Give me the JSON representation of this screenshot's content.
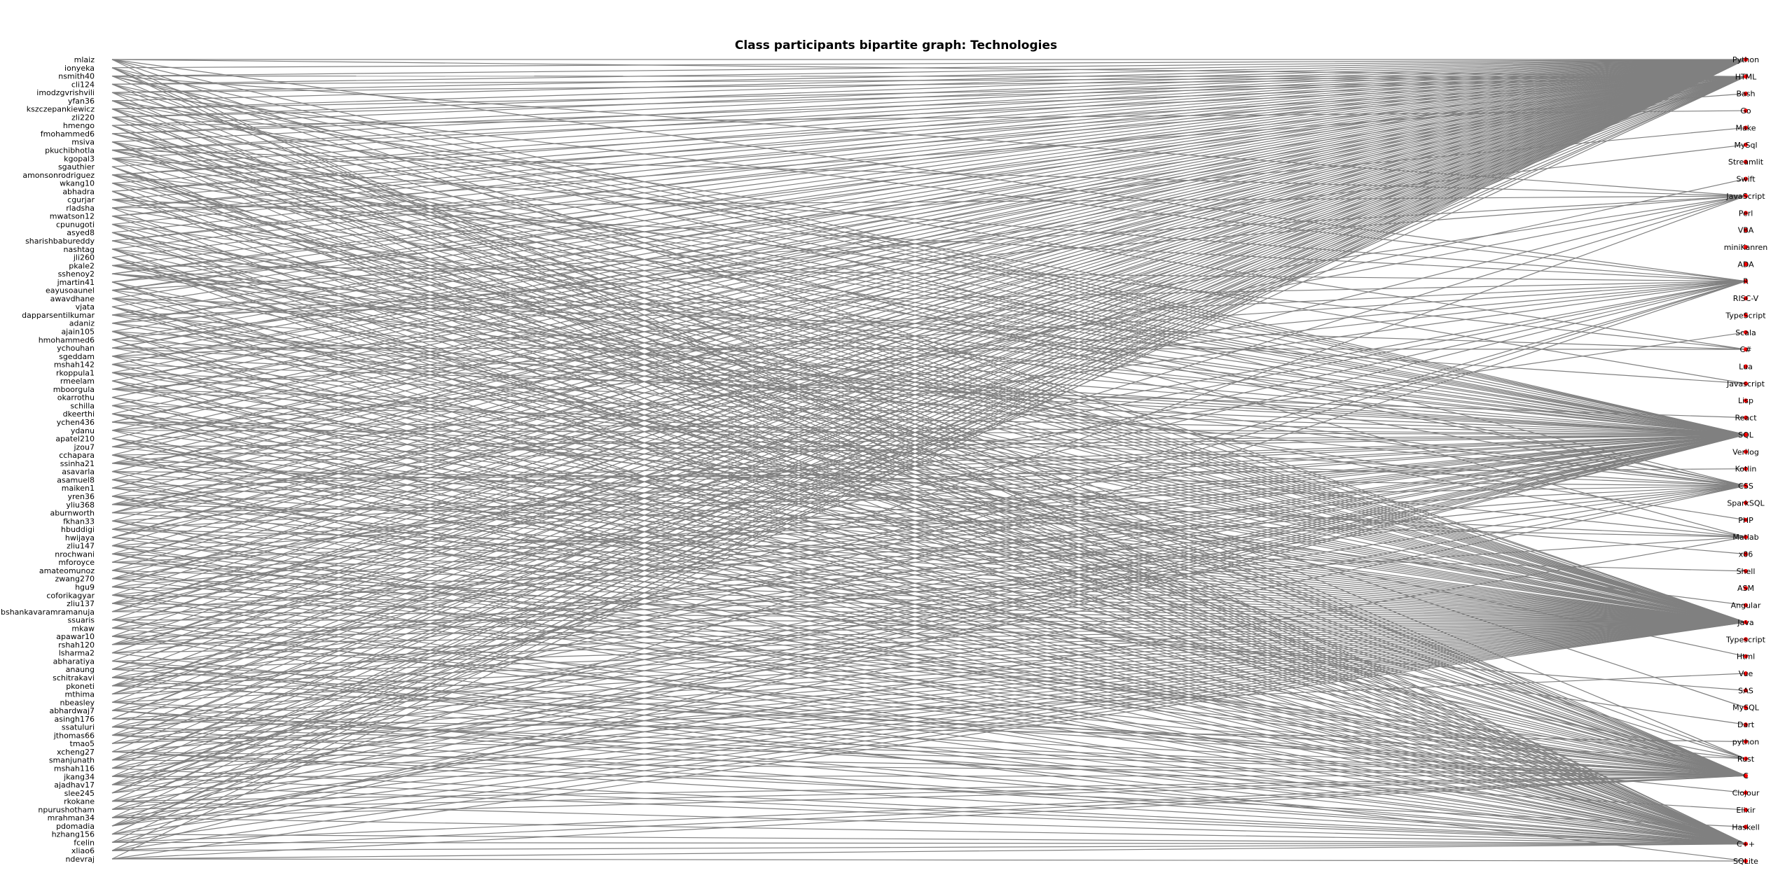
{
  "title": "Class participants bipartite graph: Technologies",
  "colors": {
    "edge": "#808080",
    "node": "#ff0000",
    "text": "#000000",
    "background": "#ffffff"
  },
  "participants": [
    "mlaiz",
    "ionyeka",
    "nsmith40",
    "cli124",
    "imodzgvrishvili",
    "yfan36",
    "kszczepankiewicz",
    "zli220",
    "hmengo",
    "fmohammed6",
    "msiva",
    "pkuchibhotla",
    "kgopal3",
    "sgauthier",
    "amonsonrodriguez",
    "wkang10",
    "abhadra",
    "cgurjar",
    "rladsha",
    "mwatson12",
    "cpunugoti",
    "asyed8",
    "sharishbabureddy",
    "nashtag",
    "jli260",
    "pkale2",
    "sshenoy2",
    "jmartin41",
    "eayusoaunel",
    "awavdhane",
    "vjata",
    "dapparsentilkumar",
    "adaniz",
    "ajain105",
    "hmohammed6",
    "ychouhan",
    "sgeddam",
    "mshah142",
    "rkoppula1",
    "rmeelam",
    "mboorgula",
    "okarrothu",
    "schilla",
    "dkeerthi",
    "ychen436",
    "ydanu",
    "apatel210",
    "jzou7",
    "cchapara",
    "ssinha21",
    "asavarla",
    "asamuel8",
    "maiken1",
    "yren36",
    "yliu368",
    "aburnworth",
    "fkhan33",
    "hbuddigi",
    "hwijaya",
    "zliu147",
    "nrochwani",
    "mforoyce",
    "amateomunoz",
    "zwang270",
    "hgu9",
    "coforikagyar",
    "zliu137",
    "bshankavaramramanuja",
    "ssuaris",
    "mkaw",
    "apawar10",
    "rshah120",
    "lsharma2",
    "abharatiya",
    "anaung",
    "schitrakavi",
    "pkoneti",
    "mthima",
    "nbeasley",
    "abhardwaj7",
    "asingh176",
    "ssatuluri",
    "jthomas66",
    "tmao5",
    "xcheng27",
    "smanjunath",
    "mshah116",
    "jkang34",
    "ajadhav17",
    "slee245",
    "rkokane",
    "npurushotham",
    "mrahman34",
    "pdomadia",
    "hzhang156",
    "fcelin",
    "xliao6",
    "ndevraj"
  ],
  "technologies": [
    "Python",
    "HTML",
    "Bash",
    "Go",
    "Make",
    "MySql",
    "Streamlit",
    "Swift",
    "JavaScript",
    "Perl",
    "VBA",
    "miniKanren",
    "ADA",
    "R",
    "RISC-V",
    "TypeScript",
    "Scala",
    "C#",
    "Lua",
    "Javascript",
    "Lisp",
    "React",
    "SQL",
    "Verilog",
    "Kotlin",
    "CSS",
    "SparkSQL",
    "PHP",
    "Matlab",
    "x86",
    "Shell",
    "ASM",
    "Angular",
    "Java",
    "Typescript",
    "Html",
    "Vue",
    "SAS",
    "MySQL",
    "Dart",
    "python",
    "Rust",
    "C",
    "Clojour",
    "Elixir",
    "Haskell",
    "C++",
    "SQLite"
  ],
  "edges": [
    [
      0,
      0
    ],
    [
      0,
      1
    ],
    [
      0,
      22
    ],
    [
      0,
      46
    ],
    [
      0,
      33
    ],
    [
      0,
      13
    ],
    [
      1,
      0
    ],
    [
      1,
      42
    ],
    [
      1,
      46
    ],
    [
      1,
      33
    ],
    [
      1,
      22
    ],
    [
      2,
      0
    ],
    [
      2,
      1
    ],
    [
      2,
      25
    ],
    [
      2,
      8
    ],
    [
      2,
      41
    ],
    [
      2,
      22
    ],
    [
      3,
      0
    ],
    [
      3,
      1
    ],
    [
      3,
      33
    ],
    [
      3,
      22
    ],
    [
      3,
      42
    ],
    [
      4,
      0
    ],
    [
      4,
      13
    ],
    [
      4,
      28
    ],
    [
      4,
      1
    ],
    [
      4,
      46
    ],
    [
      5,
      0
    ],
    [
      5,
      33
    ],
    [
      5,
      22
    ],
    [
      5,
      42
    ],
    [
      5,
      17
    ],
    [
      6,
      0
    ],
    [
      6,
      46
    ],
    [
      6,
      42
    ],
    [
      6,
      1
    ],
    [
      6,
      33
    ],
    [
      6,
      19
    ],
    [
      7,
      0
    ],
    [
      7,
      33
    ],
    [
      7,
      22
    ],
    [
      7,
      1
    ],
    [
      7,
      46
    ],
    [
      8,
      0
    ],
    [
      8,
      42
    ],
    [
      8,
      46
    ],
    [
      8,
      33
    ],
    [
      8,
      3
    ],
    [
      9,
      0
    ],
    [
      9,
      33
    ],
    [
      9,
      22
    ],
    [
      9,
      1
    ],
    [
      9,
      25
    ],
    [
      10,
      0
    ],
    [
      10,
      33
    ],
    [
      10,
      42
    ],
    [
      10,
      46
    ],
    [
      10,
      22
    ],
    [
      11,
      0
    ],
    [
      11,
      1
    ],
    [
      11,
      25
    ],
    [
      11,
      8
    ],
    [
      11,
      22
    ],
    [
      11,
      33
    ],
    [
      12,
      0
    ],
    [
      12,
      33
    ],
    [
      12,
      22
    ],
    [
      12,
      46
    ],
    [
      12,
      13
    ],
    [
      13,
      0
    ],
    [
      13,
      42
    ],
    [
      13,
      46
    ],
    [
      13,
      41
    ],
    [
      13,
      38
    ],
    [
      14,
      0
    ],
    [
      14,
      1
    ],
    [
      14,
      33
    ],
    [
      14,
      22
    ],
    [
      14,
      17
    ],
    [
      14,
      42
    ],
    [
      15,
      0
    ],
    [
      15,
      33
    ],
    [
      15,
      22
    ],
    [
      15,
      46
    ],
    [
      16,
      0
    ],
    [
      16,
      42
    ],
    [
      16,
      46
    ],
    [
      16,
      33
    ],
    [
      16,
      1
    ],
    [
      17,
      0
    ],
    [
      17,
      33
    ],
    [
      17,
      22
    ],
    [
      17,
      13
    ],
    [
      18,
      0
    ],
    [
      18,
      1
    ],
    [
      18,
      25
    ],
    [
      18,
      8
    ],
    [
      18,
      46
    ],
    [
      19,
      0
    ],
    [
      19,
      33
    ],
    [
      19,
      22
    ],
    [
      19,
      42
    ],
    [
      19,
      2
    ],
    [
      20,
      0
    ],
    [
      20,
      46
    ],
    [
      20,
      33
    ],
    [
      20,
      22
    ],
    [
      21,
      0
    ],
    [
      21,
      42
    ],
    [
      21,
      46
    ],
    [
      21,
      33
    ],
    [
      21,
      28
    ],
    [
      22,
      0
    ],
    [
      22,
      33
    ],
    [
      22,
      22
    ],
    [
      22,
      1
    ],
    [
      23,
      0
    ],
    [
      23,
      46
    ],
    [
      23,
      42
    ],
    [
      23,
      33
    ],
    [
      23,
      22
    ],
    [
      24,
      0
    ],
    [
      24,
      42
    ],
    [
      24,
      46
    ],
    [
      24,
      33
    ],
    [
      24,
      41
    ],
    [
      25,
      0
    ],
    [
      25,
      33
    ],
    [
      25,
      22
    ],
    [
      25,
      13
    ],
    [
      25,
      27
    ],
    [
      26,
      0
    ],
    [
      26,
      1
    ],
    [
      26,
      25
    ],
    [
      26,
      19
    ],
    [
      26,
      22
    ],
    [
      27,
      0
    ],
    [
      27,
      42
    ],
    [
      27,
      46
    ],
    [
      27,
      33
    ],
    [
      27,
      4
    ],
    [
      28,
      0
    ],
    [
      28,
      1
    ],
    [
      28,
      8
    ],
    [
      28,
      25
    ],
    [
      28,
      42
    ],
    [
      29,
      0
    ],
    [
      29,
      33
    ],
    [
      29,
      22
    ],
    [
      29,
      46
    ],
    [
      29,
      17
    ],
    [
      30,
      0
    ],
    [
      30,
      42
    ],
    [
      30,
      46
    ],
    [
      30,
      33
    ],
    [
      30,
      35
    ],
    [
      31,
      0
    ],
    [
      31,
      33
    ],
    [
      31,
      22
    ],
    [
      31,
      13
    ],
    [
      32,
      0
    ],
    [
      32,
      1
    ],
    [
      32,
      25
    ],
    [
      32,
      8
    ],
    [
      32,
      33
    ],
    [
      33,
      0
    ],
    [
      33,
      33
    ],
    [
      33,
      22
    ],
    [
      33,
      42
    ],
    [
      33,
      46
    ],
    [
      34,
      0
    ],
    [
      34,
      42
    ],
    [
      34,
      46
    ],
    [
      34,
      22
    ],
    [
      34,
      5
    ],
    [
      35,
      0
    ],
    [
      35,
      33
    ],
    [
      35,
      1
    ],
    [
      35,
      22
    ],
    [
      35,
      17
    ],
    [
      36,
      0
    ],
    [
      36,
      46
    ],
    [
      36,
      33
    ],
    [
      36,
      22
    ],
    [
      36,
      13
    ],
    [
      37,
      0
    ],
    [
      37,
      33
    ],
    [
      37,
      42
    ],
    [
      37,
      1
    ],
    [
      37,
      21
    ],
    [
      38,
      0
    ],
    [
      38,
      22
    ],
    [
      38,
      46
    ],
    [
      38,
      33
    ],
    [
      38,
      28
    ],
    [
      39,
      0
    ],
    [
      39,
      42
    ],
    [
      39,
      46
    ],
    [
      39,
      33
    ],
    [
      39,
      1
    ],
    [
      40,
      0
    ],
    [
      40,
      33
    ],
    [
      40,
      22
    ],
    [
      40,
      13
    ],
    [
      40,
      25
    ],
    [
      41,
      0
    ],
    [
      41,
      1
    ],
    [
      41,
      46
    ],
    [
      41,
      42
    ],
    [
      41,
      32
    ],
    [
      42,
      0
    ],
    [
      42,
      33
    ],
    [
      42,
      22
    ],
    [
      42,
      46
    ],
    [
      43,
      0
    ],
    [
      43,
      42
    ],
    [
      43,
      46
    ],
    [
      43,
      33
    ],
    [
      43,
      29
    ],
    [
      44,
      0
    ],
    [
      44,
      1
    ],
    [
      44,
      33
    ],
    [
      44,
      22
    ],
    [
      44,
      25
    ],
    [
      45,
      0
    ],
    [
      45,
      33
    ],
    [
      45,
      22
    ],
    [
      45,
      46
    ],
    [
      45,
      13
    ],
    [
      46,
      0
    ],
    [
      46,
      42
    ],
    [
      46,
      46
    ],
    [
      46,
      33
    ],
    [
      46,
      41
    ],
    [
      47,
      0
    ],
    [
      47,
      33
    ],
    [
      47,
      1
    ],
    [
      47,
      22
    ],
    [
      47,
      8
    ],
    [
      48,
      0
    ],
    [
      48,
      42
    ],
    [
      48,
      46
    ],
    [
      48,
      33
    ],
    [
      48,
      22
    ],
    [
      49,
      0
    ],
    [
      49,
      33
    ],
    [
      49,
      22
    ],
    [
      49,
      13
    ],
    [
      49,
      28
    ],
    [
      50,
      0
    ],
    [
      50,
      1
    ],
    [
      50,
      25
    ],
    [
      50,
      33
    ],
    [
      50,
      46
    ],
    [
      51,
      0
    ],
    [
      51,
      42
    ],
    [
      51,
      46
    ],
    [
      51,
      33
    ],
    [
      51,
      24
    ],
    [
      52,
      0
    ],
    [
      52,
      33
    ],
    [
      52,
      22
    ],
    [
      52,
      1
    ],
    [
      52,
      39
    ],
    [
      53,
      0
    ],
    [
      53,
      42
    ],
    [
      53,
      46
    ],
    [
      53,
      33
    ],
    [
      53,
      22
    ],
    [
      54,
      0
    ],
    [
      54,
      33
    ],
    [
      54,
      22
    ],
    [
      54,
      13
    ],
    [
      54,
      28
    ],
    [
      55,
      0
    ],
    [
      55,
      1
    ],
    [
      55,
      25
    ],
    [
      55,
      8
    ],
    [
      55,
      33
    ],
    [
      56,
      0
    ],
    [
      56,
      42
    ],
    [
      56,
      46
    ],
    [
      56,
      33
    ],
    [
      56,
      22
    ],
    [
      57,
      0
    ],
    [
      57,
      33
    ],
    [
      57,
      22
    ],
    [
      57,
      46
    ],
    [
      57,
      30
    ],
    [
      58,
      0
    ],
    [
      58,
      1
    ],
    [
      58,
      42
    ],
    [
      58,
      33
    ],
    [
      58,
      7
    ],
    [
      59,
      0
    ],
    [
      59,
      33
    ],
    [
      59,
      22
    ],
    [
      59,
      42
    ],
    [
      59,
      46
    ],
    [
      60,
      0
    ],
    [
      60,
      46
    ],
    [
      60,
      42
    ],
    [
      60,
      33
    ],
    [
      60,
      22
    ],
    [
      61,
      0
    ],
    [
      61,
      33
    ],
    [
      61,
      1
    ],
    [
      61,
      25
    ],
    [
      61,
      37
    ],
    [
      62,
      0
    ],
    [
      62,
      42
    ],
    [
      62,
      46
    ],
    [
      62,
      33
    ],
    [
      62,
      16
    ],
    [
      63,
      0
    ],
    [
      63,
      33
    ],
    [
      63,
      22
    ],
    [
      63,
      13
    ],
    [
      63,
      41
    ],
    [
      64,
      0
    ],
    [
      64,
      1
    ],
    [
      64,
      33
    ],
    [
      64,
      22
    ],
    [
      64,
      42
    ],
    [
      65,
      0
    ],
    [
      65,
      42
    ],
    [
      65,
      46
    ],
    [
      65,
      33
    ],
    [
      65,
      22
    ],
    [
      66,
      0
    ],
    [
      66,
      33
    ],
    [
      66,
      22
    ],
    [
      66,
      46
    ],
    [
      66,
      13
    ],
    [
      67,
      0
    ],
    [
      67,
      1
    ],
    [
      67,
      25
    ],
    [
      67,
      8
    ],
    [
      67,
      33
    ],
    [
      68,
      0
    ],
    [
      68,
      42
    ],
    [
      68,
      46
    ],
    [
      68,
      33
    ],
    [
      68,
      22
    ],
    [
      69,
      0
    ],
    [
      69,
      33
    ],
    [
      69,
      22
    ],
    [
      69,
      1
    ],
    [
      69,
      43
    ],
    [
      70,
      0
    ],
    [
      70,
      42
    ],
    [
      70,
      46
    ],
    [
      70,
      33
    ],
    [
      70,
      22
    ],
    [
      71,
      0
    ],
    [
      71,
      33
    ],
    [
      71,
      22
    ],
    [
      71,
      13
    ],
    [
      71,
      28
    ],
    [
      72,
      0
    ],
    [
      72,
      1
    ],
    [
      72,
      25
    ],
    [
      72,
      33
    ],
    [
      72,
      46
    ],
    [
      73,
      0
    ],
    [
      73,
      42
    ],
    [
      73,
      46
    ],
    [
      73,
      33
    ],
    [
      73,
      47
    ],
    [
      74,
      0
    ],
    [
      74,
      33
    ],
    [
      74,
      22
    ],
    [
      74,
      1
    ],
    [
      74,
      42
    ],
    [
      75,
      0
    ],
    [
      75,
      42
    ],
    [
      75,
      46
    ],
    [
      75,
      33
    ],
    [
      75,
      22
    ],
    [
      76,
      0
    ],
    [
      76,
      33
    ],
    [
      76,
      22
    ],
    [
      76,
      13
    ],
    [
      76,
      41
    ],
    [
      77,
      0
    ],
    [
      77,
      1
    ],
    [
      77,
      25
    ],
    [
      77,
      8
    ],
    [
      77,
      33
    ],
    [
      78,
      0
    ],
    [
      78,
      42
    ],
    [
      78,
      46
    ],
    [
      78,
      33
    ],
    [
      78,
      22
    ],
    [
      79,
      0
    ],
    [
      79,
      33
    ],
    [
      79,
      22
    ],
    [
      79,
      46
    ],
    [
      79,
      44
    ],
    [
      80,
      0
    ],
    [
      80,
      1
    ],
    [
      80,
      42
    ],
    [
      80,
      33
    ],
    [
      80,
      40
    ],
    [
      81,
      0
    ],
    [
      81,
      33
    ],
    [
      81,
      22
    ],
    [
      81,
      42
    ],
    [
      81,
      46
    ],
    [
      82,
      0
    ],
    [
      82,
      42
    ],
    [
      82,
      46
    ],
    [
      82,
      33
    ],
    [
      82,
      22
    ],
    [
      83,
      0
    ],
    [
      83,
      33
    ],
    [
      83,
      1
    ],
    [
      83,
      25
    ],
    [
      83,
      36
    ],
    [
      84,
      0
    ],
    [
      84,
      42
    ],
    [
      84,
      46
    ],
    [
      84,
      33
    ],
    [
      84,
      45
    ],
    [
      85,
      0
    ],
    [
      85,
      33
    ],
    [
      85,
      22
    ],
    [
      85,
      13
    ],
    [
      85,
      42
    ],
    [
      86,
      0
    ],
    [
      86,
      1
    ],
    [
      86,
      33
    ],
    [
      86,
      22
    ],
    [
      86,
      46
    ],
    [
      87,
      0
    ],
    [
      87,
      42
    ],
    [
      87,
      46
    ],
    [
      87,
      33
    ],
    [
      87,
      22
    ],
    [
      88,
      0
    ],
    [
      88,
      33
    ],
    [
      88,
      22
    ],
    [
      88,
      46
    ],
    [
      88,
      13
    ],
    [
      89,
      0
    ],
    [
      89,
      1
    ],
    [
      89,
      25
    ],
    [
      89,
      8
    ],
    [
      89,
      33
    ],
    [
      90,
      0
    ],
    [
      90,
      42
    ],
    [
      90,
      46
    ],
    [
      90,
      33
    ],
    [
      90,
      22
    ],
    [
      91,
      0
    ],
    [
      91,
      33
    ],
    [
      91,
      22
    ],
    [
      91,
      1
    ],
    [
      91,
      42
    ],
    [
      92,
      0
    ],
    [
      92,
      42
    ],
    [
      92,
      46
    ],
    [
      92,
      33
    ],
    [
      92,
      22
    ],
    [
      93,
      0
    ],
    [
      93,
      33
    ],
    [
      93,
      22
    ],
    [
      93,
      13
    ],
    [
      93,
      28
    ],
    [
      94,
      0
    ],
    [
      94,
      1
    ],
    [
      94,
      25
    ],
    [
      94,
      33
    ],
    [
      94,
      46
    ],
    [
      95,
      0
    ],
    [
      95,
      42
    ],
    [
      95,
      46
    ],
    [
      95,
      33
    ],
    [
      95,
      22
    ],
    [
      96,
      0
    ],
    [
      96,
      33
    ],
    [
      96,
      22
    ],
    [
      96,
      46
    ],
    [
      96,
      42
    ],
    [
      97,
      0
    ],
    [
      97,
      47
    ],
    [
      97,
      42
    ],
    [
      97,
      33
    ],
    [
      97,
      46
    ]
  ]
}
